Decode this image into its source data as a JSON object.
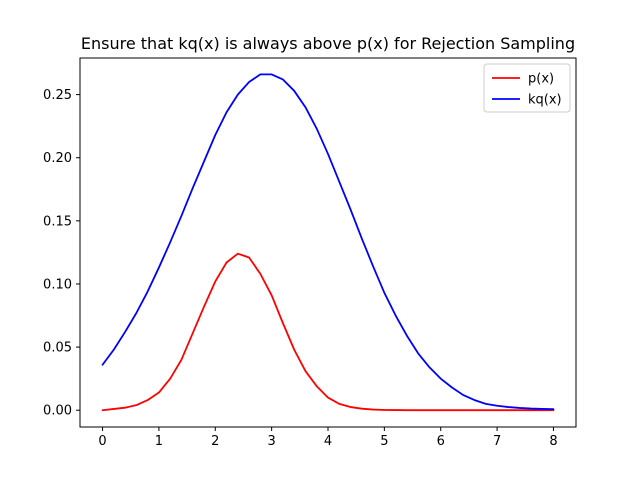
{
  "chart_data": {
    "type": "line",
    "title": "Ensure that kq(x) is always above p(x) for Rejection Sampling",
    "xlabel": "",
    "ylabel": "",
    "xlim": [
      -0.4,
      8.4
    ],
    "ylim": [
      -0.0133,
      0.279
    ],
    "x_ticks": [
      0,
      1,
      2,
      3,
      4,
      5,
      6,
      7,
      8
    ],
    "x_tick_labels": [
      "0",
      "1",
      "2",
      "3",
      "4",
      "5",
      "6",
      "7",
      "8"
    ],
    "y_ticks": [
      0.0,
      0.05,
      0.1,
      0.15,
      0.2,
      0.25
    ],
    "y_tick_labels": [
      "0.00",
      "0.05",
      "0.10",
      "0.15",
      "0.20",
      "0.25"
    ],
    "grid": false,
    "legend_position": "top-right",
    "x": [
      0.0,
      0.2,
      0.4,
      0.6,
      0.8,
      1.0,
      1.2,
      1.4,
      1.6,
      1.8,
      2.0,
      2.2,
      2.4,
      2.6,
      2.8,
      3.0,
      3.2,
      3.4,
      3.6,
      3.8,
      4.0,
      4.2,
      4.4,
      4.6,
      4.8,
      5.0,
      5.2,
      5.4,
      5.6,
      5.8,
      6.0,
      6.2,
      6.4,
      6.6,
      6.8,
      7.0,
      7.2,
      7.4,
      7.6,
      7.8,
      8.0
    ],
    "series": [
      {
        "name": "p(x)",
        "color": "#ff0000",
        "values": [
          0.0,
          0.001,
          0.002,
          0.004,
          0.008,
          0.014,
          0.025,
          0.04,
          0.061,
          0.082,
          0.102,
          0.117,
          0.124,
          0.121,
          0.108,
          0.091,
          0.069,
          0.048,
          0.031,
          0.019,
          0.01,
          0.005,
          0.0025,
          0.0012,
          0.0005,
          0.0002,
          0.0001,
          0.0,
          0.0,
          0.0,
          0.0,
          0.0,
          0.0,
          0.0,
          0.0,
          0.0,
          0.0,
          0.0,
          0.0,
          0.0,
          0.0
        ]
      },
      {
        "name": "kq(x)",
        "color": "#0000ff",
        "values": [
          0.036,
          0.048,
          0.062,
          0.077,
          0.094,
          0.113,
          0.133,
          0.154,
          0.176,
          0.197,
          0.218,
          0.236,
          0.25,
          0.26,
          0.266,
          0.266,
          0.262,
          0.253,
          0.24,
          0.223,
          0.203,
          0.181,
          0.159,
          0.136,
          0.114,
          0.093,
          0.075,
          0.059,
          0.045,
          0.034,
          0.025,
          0.018,
          0.012,
          0.008,
          0.005,
          0.0035,
          0.0025,
          0.0018,
          0.0013,
          0.001,
          0.0008
        ]
      }
    ]
  }
}
